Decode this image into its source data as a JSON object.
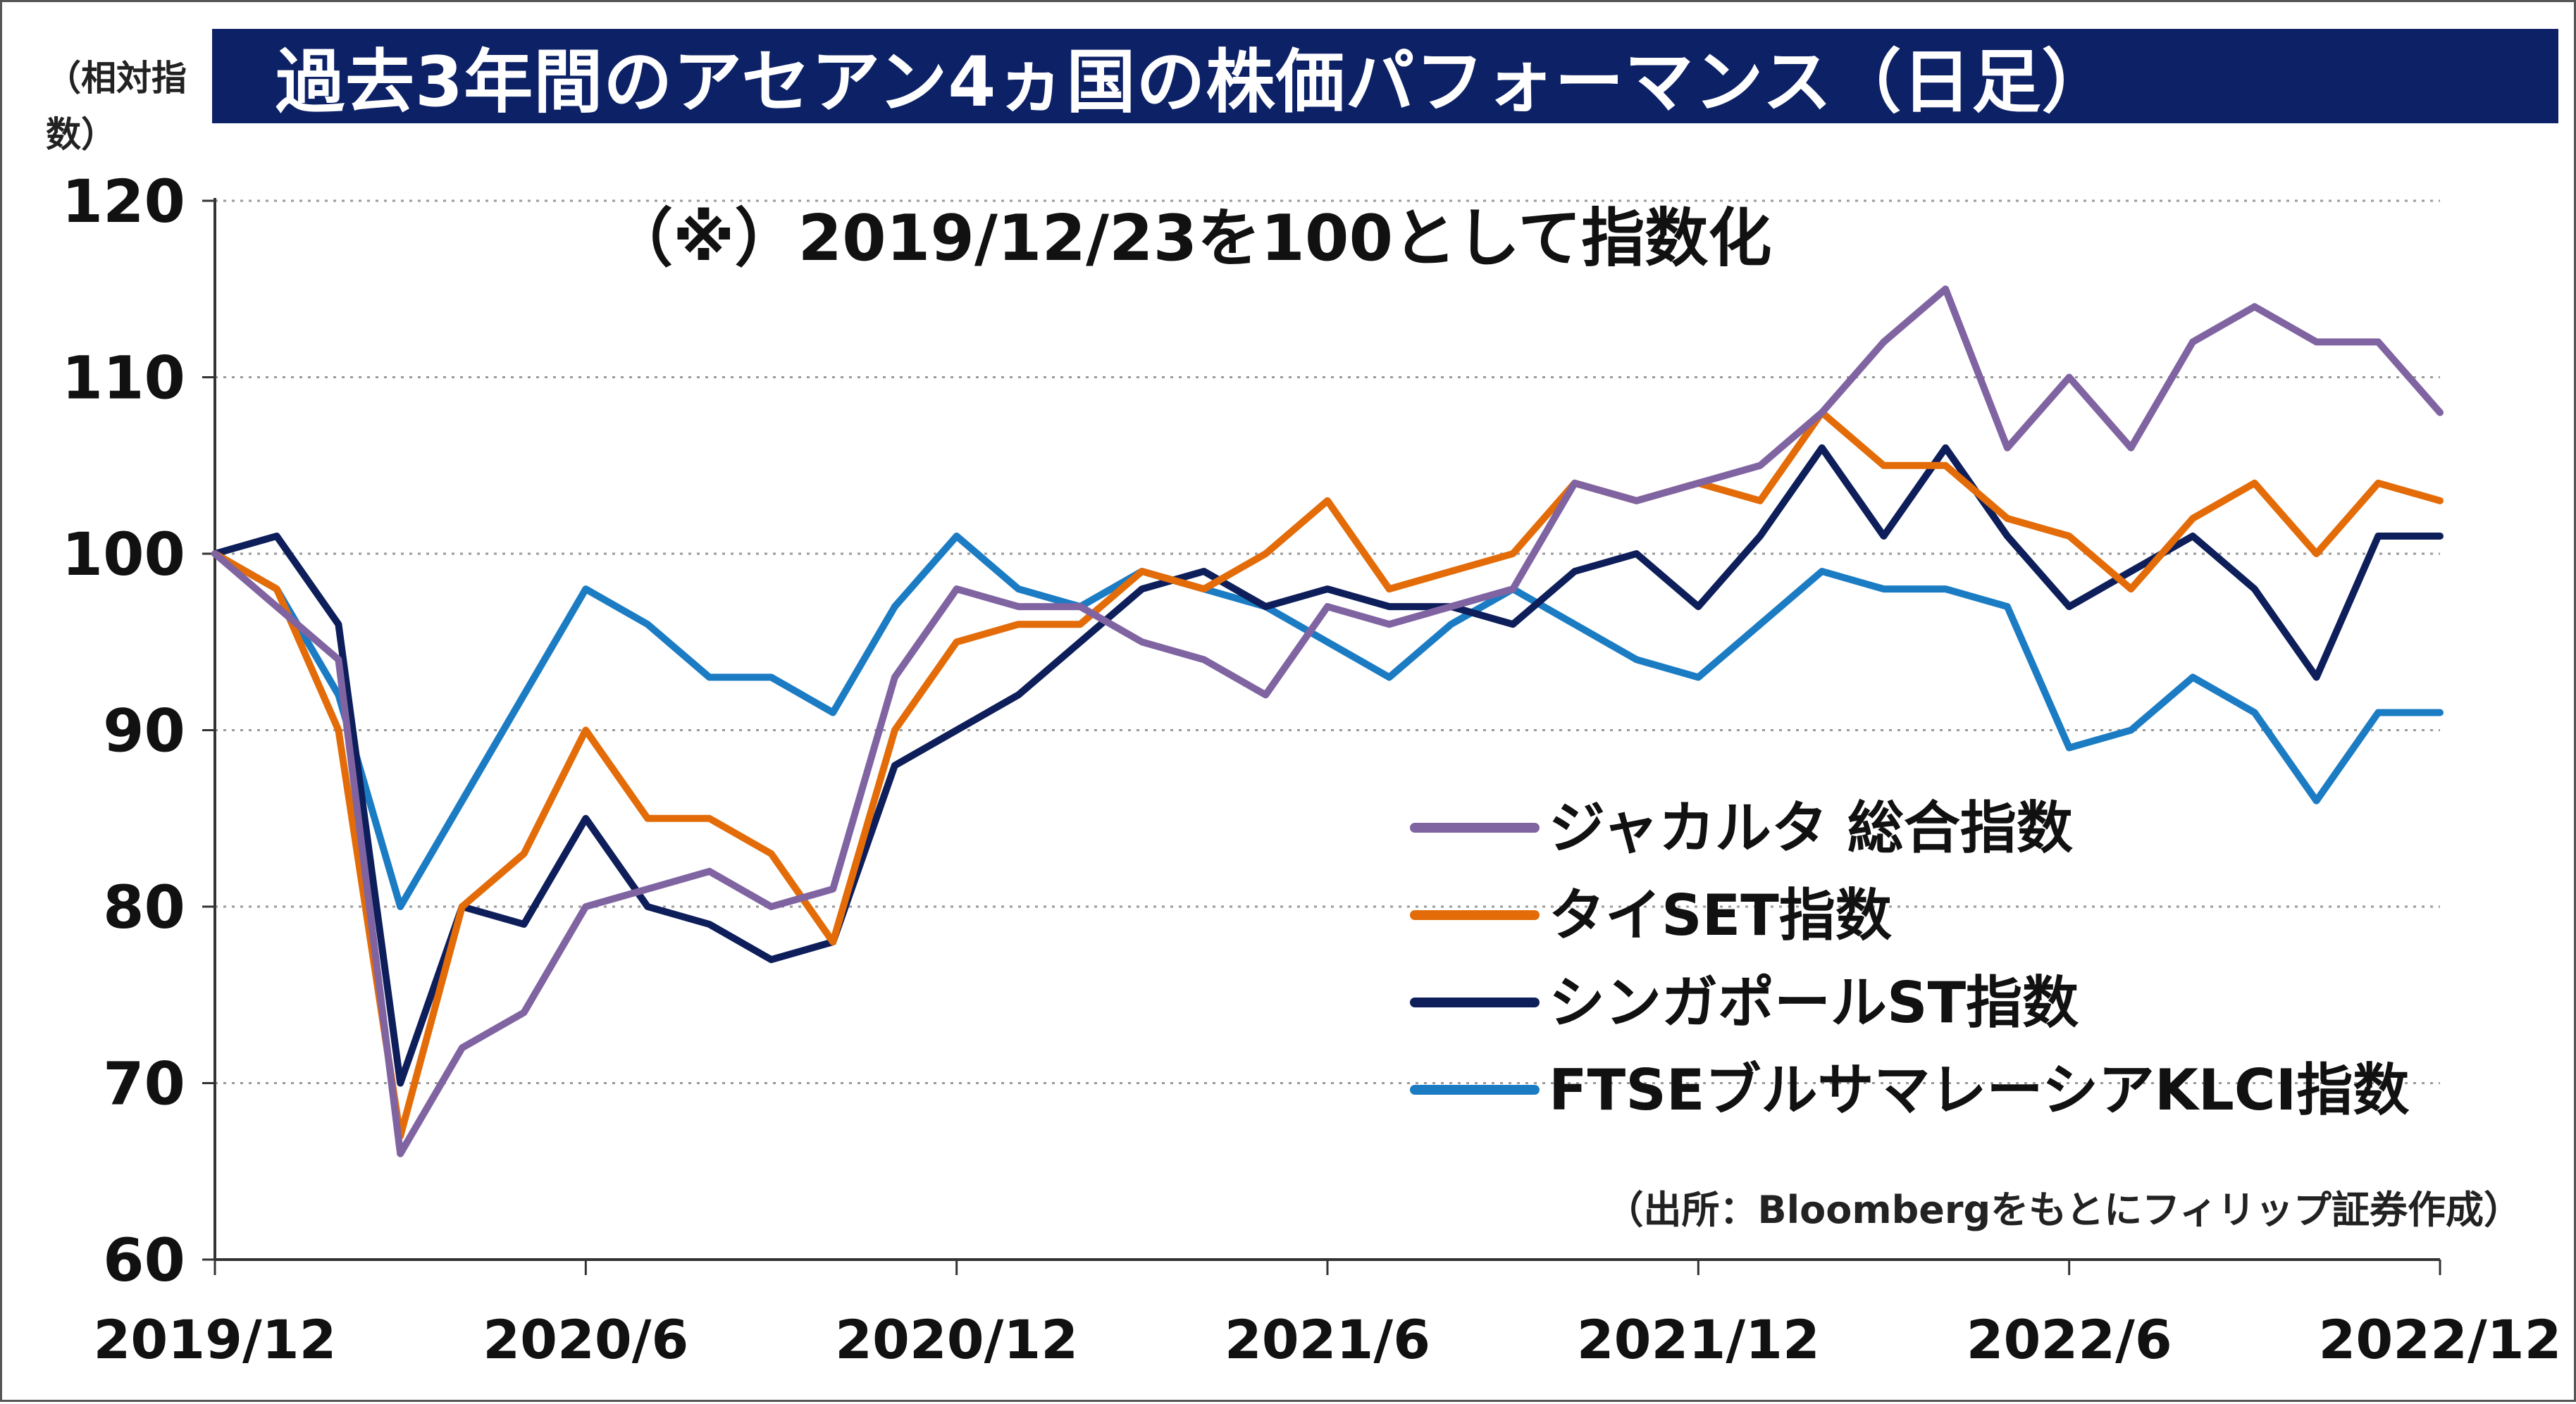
{
  "title": "過去3年間のアセアン4ヵ国の株価パフォーマンス（日足）",
  "ylabel": "（相対指数）",
  "note": "（※）2019/12/23を100として指数化",
  "source": "（出所：Bloombergをもとにフィリップ証券作成）",
  "chart_data": {
    "type": "line",
    "title": "過去3年間のアセアン4ヵ国の株価パフォーマンス（日足）",
    "ylabel": "（相対指数）",
    "xlabel": "",
    "ylim": [
      60,
      120
    ],
    "yticks": [
      60,
      70,
      80,
      90,
      100,
      110,
      120
    ],
    "grid": "horizontal-dotted",
    "legend_position": "right-middle",
    "x": [
      "2019/12",
      "2020/1",
      "2020/2",
      "2020/3",
      "2020/4",
      "2020/5",
      "2020/6",
      "2020/7",
      "2020/8",
      "2020/9",
      "2020/10",
      "2020/11",
      "2020/12",
      "2021/1",
      "2021/2",
      "2021/3",
      "2021/4",
      "2021/5",
      "2021/6",
      "2021/7",
      "2021/8",
      "2021/9",
      "2021/10",
      "2021/11",
      "2021/12",
      "2022/1",
      "2022/2",
      "2022/3",
      "2022/4",
      "2022/5",
      "2022/6",
      "2022/7",
      "2022/8",
      "2022/9",
      "2022/10",
      "2022/11",
      "2022/12"
    ],
    "xticks": [
      "2019/12",
      "2020/6",
      "2020/12",
      "2021/6",
      "2021/12",
      "2022/6",
      "2022/12"
    ],
    "series": [
      {
        "name": "ジャカルタ 総合指数",
        "color": "#8064a2",
        "values": [
          100,
          97,
          94,
          66,
          72,
          74,
          80,
          81,
          82,
          80,
          81,
          93,
          98,
          97,
          97,
          95,
          94,
          92,
          97,
          96,
          97,
          98,
          104,
          103,
          104,
          105,
          108,
          112,
          115,
          106,
          110,
          106,
          112,
          114,
          112,
          112,
          108
        ]
      },
      {
        "name": "タイSET指数",
        "color": "#e36c09",
        "values": [
          100,
          98,
          90,
          67,
          80,
          83,
          90,
          85,
          85,
          83,
          78,
          90,
          95,
          96,
          96,
          99,
          98,
          100,
          103,
          98,
          99,
          100,
          104,
          103,
          104,
          103,
          108,
          105,
          105,
          102,
          101,
          98,
          102,
          104,
          100,
          104,
          103
        ]
      },
      {
        "name": "シンガポールST指数",
        "color": "#0d1e5a",
        "values": [
          100,
          101,
          96,
          70,
          80,
          79,
          85,
          80,
          79,
          77,
          78,
          88,
          90,
          92,
          95,
          98,
          99,
          97,
          98,
          97,
          97,
          96,
          99,
          100,
          97,
          101,
          106,
          101,
          106,
          101,
          97,
          99,
          101,
          98,
          93,
          101,
          101
        ]
      },
      {
        "name": "FTSEブルサマレーシアKLCI指数",
        "color": "#1b7cc4",
        "values": [
          100,
          98,
          92,
          80,
          86,
          92,
          98,
          96,
          93,
          93,
          91,
          97,
          101,
          98,
          97,
          99,
          98,
          97,
          95,
          93,
          96,
          98,
          96,
          94,
          93,
          96,
          99,
          98,
          98,
          97,
          89,
          90,
          93,
          91,
          86,
          91,
          91
        ]
      }
    ]
  }
}
